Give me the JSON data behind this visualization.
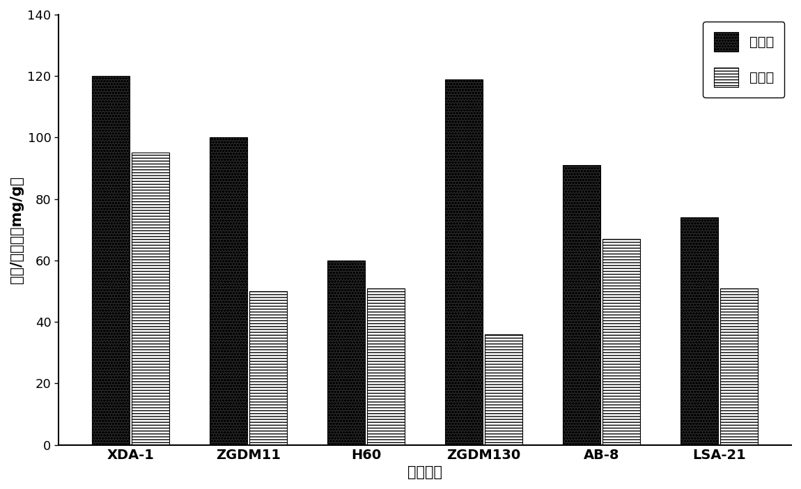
{
  "categories": [
    "XDA-1",
    "ZGDM11",
    "H60",
    "ZGDM130",
    "AB-8",
    "LSA-21"
  ],
  "adsorption": [
    120,
    100,
    60,
    119,
    91,
    74
  ],
  "desorption": [
    95,
    50,
    51,
    36,
    67,
    51
  ],
  "ylabel": "吸附/解吸量（mg/g）",
  "xlabel": "树脂类型",
  "ylim": [
    0,
    140
  ],
  "yticks": [
    0,
    20,
    40,
    60,
    80,
    100,
    120,
    140
  ],
  "legend_adsorption": "吸附量",
  "legend_desorption": "解吸量",
  "background_color": "#ffffff",
  "bar_width": 0.32,
  "figsize": [
    11.5,
    7.02
  ],
  "dpi": 100,
  "label_fontsize": 15,
  "tick_fontsize": 13,
  "legend_fontsize": 14,
  "category_fontsize": 14
}
